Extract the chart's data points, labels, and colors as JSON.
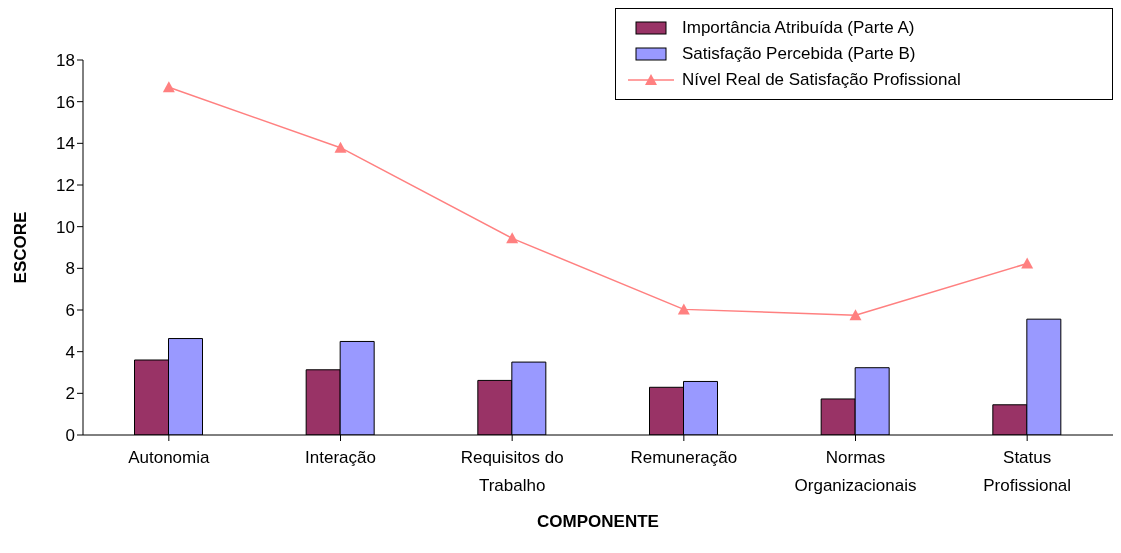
{
  "chart_data": {
    "type": "bar",
    "xlabel": "COMPONENTE",
    "ylabel": "ESCORE",
    "categories": [
      "Autonomia",
      "Interação",
      "Requisitos do Trabalho",
      "Remuneração",
      "Normas Organizacionais",
      "Status Profissional"
    ],
    "series": [
      {
        "name": "Importância Atribuída (Parte A)",
        "color": "#993366",
        "values": [
          3.6,
          3.13,
          2.62,
          2.29,
          1.73,
          1.45
        ]
      },
      {
        "name": "Satisfação Percebida (Parte B)",
        "color": "#9999ff",
        "values": [
          4.63,
          4.49,
          3.5,
          2.57,
          3.23,
          5.56
        ]
      },
      {
        "name": "Nível Real de Satisfação Profissional",
        "type": "line",
        "color": "#ff8080",
        "marker": "triangle",
        "values": [
          16.69,
          13.79,
          9.44,
          6.03,
          5.75,
          8.23
        ]
      }
    ],
    "ylim": [
      0,
      18
    ],
    "yticks": [
      0,
      2,
      4,
      6,
      8,
      10,
      12,
      14,
      16,
      18
    ],
    "grid": false,
    "legend": "top right"
  }
}
